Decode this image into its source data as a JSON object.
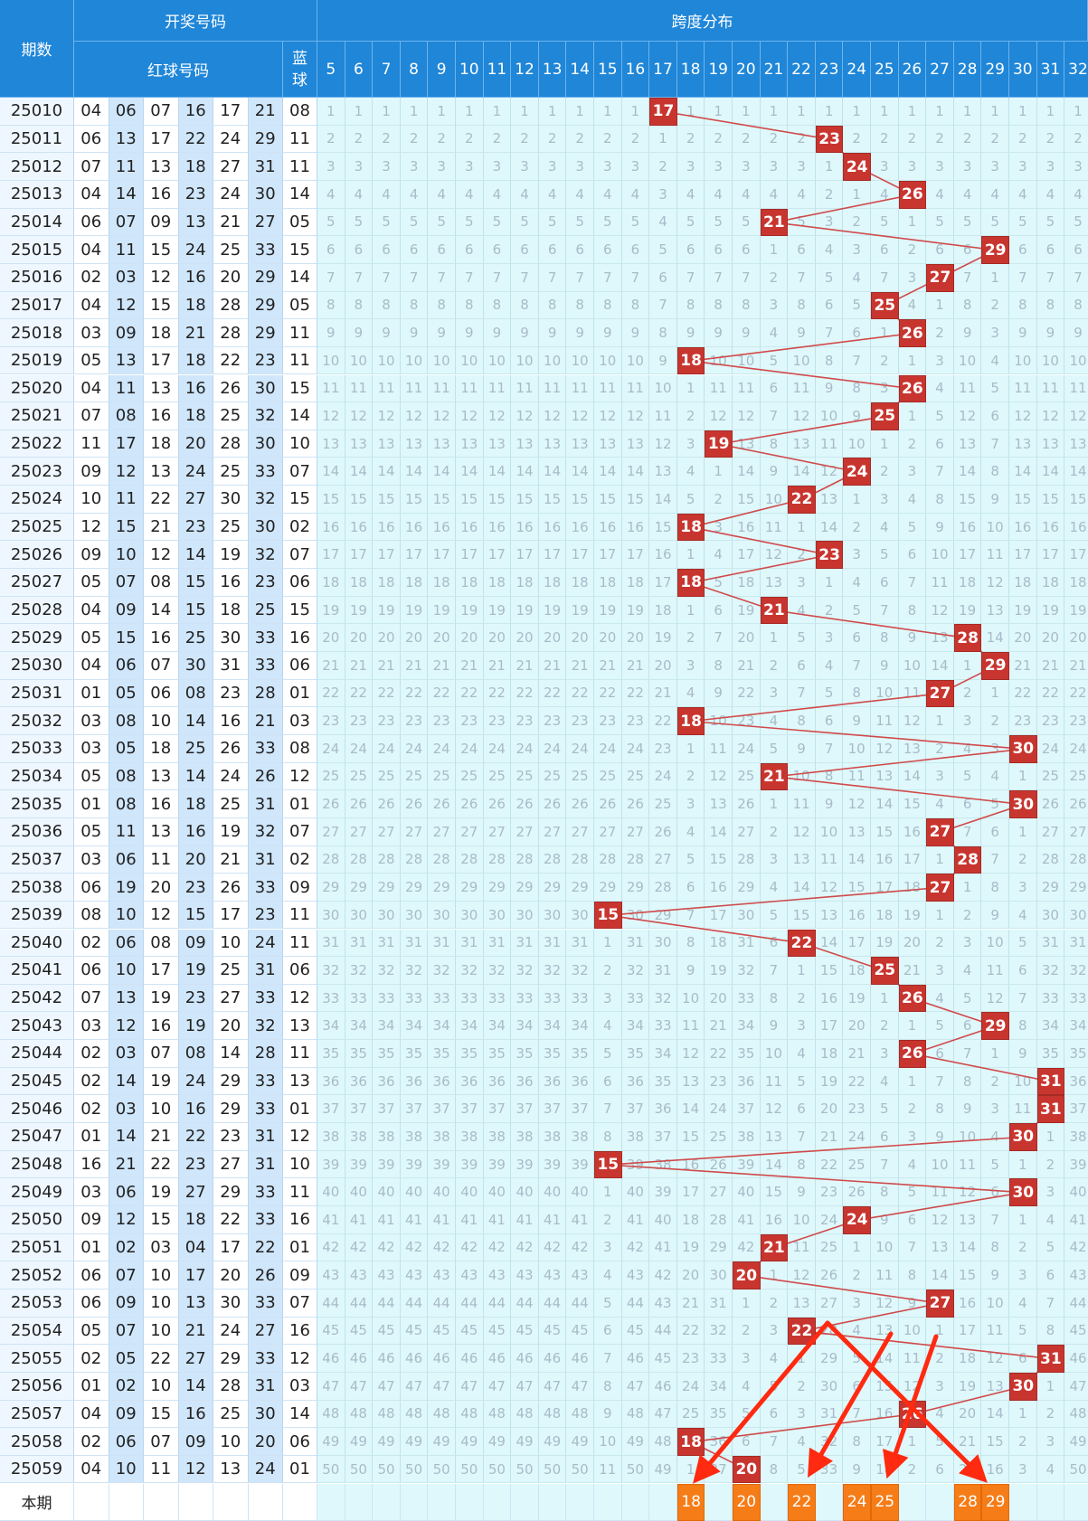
{
  "header": {
    "period_label": "期数",
    "draw_group_label": "开奖号码",
    "red_label": "红球号码",
    "blue_label": "蓝球",
    "span_group_label": "跨度分布"
  },
  "span_columns": [
    "5",
    "6",
    "7",
    "8",
    "9",
    "10",
    "11",
    "12",
    "13",
    "14",
    "15",
    "16",
    "17",
    "18",
    "19",
    "20",
    "21",
    "22",
    "23",
    "24",
    "25",
    "26",
    "27",
    "28",
    "29",
    "30",
    "31",
    "32"
  ],
  "rows": [
    {
      "period": "25010",
      "red": [
        "04",
        "06",
        "07",
        "16",
        "17",
        "21"
      ],
      "blue": "08",
      "span": 17
    },
    {
      "period": "25011",
      "red": [
        "06",
        "13",
        "17",
        "22",
        "24",
        "29"
      ],
      "blue": "11",
      "span": 23
    },
    {
      "period": "25012",
      "red": [
        "07",
        "11",
        "13",
        "18",
        "27",
        "31"
      ],
      "blue": "11",
      "span": 24
    },
    {
      "period": "25013",
      "red": [
        "04",
        "14",
        "16",
        "23",
        "24",
        "30"
      ],
      "blue": "14",
      "span": 26
    },
    {
      "period": "25014",
      "red": [
        "06",
        "07",
        "09",
        "13",
        "21",
        "27"
      ],
      "blue": "05",
      "span": 21
    },
    {
      "period": "25015",
      "red": [
        "04",
        "11",
        "15",
        "24",
        "25",
        "33"
      ],
      "blue": "15",
      "span": 29
    },
    {
      "period": "25016",
      "red": [
        "02",
        "03",
        "12",
        "16",
        "20",
        "29"
      ],
      "blue": "14",
      "span": 27
    },
    {
      "period": "25017",
      "red": [
        "04",
        "12",
        "15",
        "18",
        "28",
        "29"
      ],
      "blue": "05",
      "span": 25
    },
    {
      "period": "25018",
      "red": [
        "03",
        "09",
        "18",
        "21",
        "28",
        "29"
      ],
      "blue": "11",
      "span": 26
    },
    {
      "period": "25019",
      "red": [
        "05",
        "13",
        "17",
        "18",
        "22",
        "23"
      ],
      "blue": "11",
      "span": 18
    },
    {
      "period": "25020",
      "red": [
        "04",
        "11",
        "13",
        "16",
        "26",
        "30"
      ],
      "blue": "15",
      "span": 26
    },
    {
      "period": "25021",
      "red": [
        "07",
        "08",
        "16",
        "18",
        "25",
        "32"
      ],
      "blue": "14",
      "span": 25
    },
    {
      "period": "25022",
      "red": [
        "11",
        "17",
        "18",
        "20",
        "28",
        "30"
      ],
      "blue": "10",
      "span": 19
    },
    {
      "period": "25023",
      "red": [
        "09",
        "12",
        "13",
        "24",
        "25",
        "33"
      ],
      "blue": "07",
      "span": 24
    },
    {
      "period": "25024",
      "red": [
        "10",
        "11",
        "22",
        "27",
        "30",
        "32"
      ],
      "blue": "15",
      "span": 22
    },
    {
      "period": "25025",
      "red": [
        "12",
        "15",
        "21",
        "23",
        "25",
        "30"
      ],
      "blue": "02",
      "span": 18
    },
    {
      "period": "25026",
      "red": [
        "09",
        "10",
        "12",
        "14",
        "19",
        "32"
      ],
      "blue": "07",
      "span": 23
    },
    {
      "period": "25027",
      "red": [
        "05",
        "07",
        "08",
        "15",
        "16",
        "23"
      ],
      "blue": "06",
      "span": 18
    },
    {
      "period": "25028",
      "red": [
        "04",
        "09",
        "14",
        "15",
        "18",
        "25"
      ],
      "blue": "15",
      "span": 21
    },
    {
      "period": "25029",
      "red": [
        "05",
        "15",
        "16",
        "25",
        "30",
        "33"
      ],
      "blue": "16",
      "span": 28
    },
    {
      "period": "25030",
      "red": [
        "04",
        "06",
        "07",
        "30",
        "31",
        "33"
      ],
      "blue": "06",
      "span": 29
    },
    {
      "period": "25031",
      "red": [
        "01",
        "05",
        "06",
        "08",
        "23",
        "28"
      ],
      "blue": "01",
      "span": 27
    },
    {
      "period": "25032",
      "red": [
        "03",
        "08",
        "10",
        "14",
        "16",
        "21"
      ],
      "blue": "03",
      "span": 18
    },
    {
      "period": "25033",
      "red": [
        "03",
        "05",
        "18",
        "25",
        "26",
        "33"
      ],
      "blue": "08",
      "span": 30
    },
    {
      "period": "25034",
      "red": [
        "05",
        "08",
        "13",
        "14",
        "24",
        "26"
      ],
      "blue": "12",
      "span": 21
    },
    {
      "period": "25035",
      "red": [
        "01",
        "08",
        "16",
        "18",
        "25",
        "31"
      ],
      "blue": "01",
      "span": 30
    },
    {
      "period": "25036",
      "red": [
        "05",
        "11",
        "13",
        "16",
        "19",
        "32"
      ],
      "blue": "07",
      "span": 27
    },
    {
      "period": "25037",
      "red": [
        "03",
        "06",
        "11",
        "20",
        "21",
        "31"
      ],
      "blue": "02",
      "span": 28
    },
    {
      "period": "25038",
      "red": [
        "06",
        "19",
        "20",
        "23",
        "26",
        "33"
      ],
      "blue": "09",
      "span": 27
    },
    {
      "period": "25039",
      "red": [
        "08",
        "10",
        "12",
        "15",
        "17",
        "23"
      ],
      "blue": "11",
      "span": 15
    },
    {
      "period": "25040",
      "red": [
        "02",
        "06",
        "08",
        "09",
        "10",
        "24"
      ],
      "blue": "11",
      "span": 22
    },
    {
      "period": "25041",
      "red": [
        "06",
        "10",
        "17",
        "19",
        "25",
        "31"
      ],
      "blue": "06",
      "span": 25
    },
    {
      "period": "25042",
      "red": [
        "07",
        "13",
        "19",
        "23",
        "27",
        "33"
      ],
      "blue": "12",
      "span": 26
    },
    {
      "period": "25043",
      "red": [
        "03",
        "12",
        "16",
        "19",
        "20",
        "32"
      ],
      "blue": "13",
      "span": 29
    },
    {
      "period": "25044",
      "red": [
        "02",
        "03",
        "07",
        "08",
        "14",
        "28"
      ],
      "blue": "11",
      "span": 26
    },
    {
      "period": "25045",
      "red": [
        "02",
        "14",
        "19",
        "24",
        "29",
        "33"
      ],
      "blue": "13",
      "span": 31
    },
    {
      "period": "25046",
      "red": [
        "02",
        "03",
        "10",
        "16",
        "29",
        "33"
      ],
      "blue": "01",
      "span": 31
    },
    {
      "period": "25047",
      "red": [
        "01",
        "14",
        "21",
        "22",
        "23",
        "31"
      ],
      "blue": "12",
      "span": 30
    },
    {
      "period": "25048",
      "red": [
        "16",
        "21",
        "22",
        "23",
        "27",
        "31"
      ],
      "blue": "10",
      "span": 15
    },
    {
      "period": "25049",
      "red": [
        "03",
        "06",
        "19",
        "27",
        "29",
        "33"
      ],
      "blue": "11",
      "span": 30
    },
    {
      "period": "25050",
      "red": [
        "09",
        "12",
        "15",
        "18",
        "22",
        "33"
      ],
      "blue": "16",
      "span": 24
    },
    {
      "period": "25051",
      "red": [
        "01",
        "02",
        "03",
        "04",
        "17",
        "22"
      ],
      "blue": "01",
      "span": 21
    },
    {
      "period": "25052",
      "red": [
        "06",
        "07",
        "10",
        "17",
        "20",
        "26"
      ],
      "blue": "09",
      "span": 20
    },
    {
      "period": "25053",
      "red": [
        "06",
        "09",
        "10",
        "13",
        "30",
        "33"
      ],
      "blue": "07",
      "span": 27
    },
    {
      "period": "25054",
      "red": [
        "05",
        "07",
        "10",
        "21",
        "24",
        "27"
      ],
      "blue": "16",
      "span": 22
    },
    {
      "period": "25055",
      "red": [
        "02",
        "05",
        "22",
        "27",
        "29",
        "33"
      ],
      "blue": "12",
      "span": 31
    },
    {
      "period": "25056",
      "red": [
        "01",
        "02",
        "10",
        "14",
        "28",
        "31"
      ],
      "blue": "03",
      "span": 30
    },
    {
      "period": "25057",
      "red": [
        "04",
        "09",
        "15",
        "16",
        "25",
        "30"
      ],
      "blue": "14",
      "span": 26
    },
    {
      "period": "25058",
      "red": [
        "02",
        "06",
        "07",
        "09",
        "10",
        "20"
      ],
      "blue": "06",
      "span": 18
    },
    {
      "period": "25059",
      "red": [
        "04",
        "10",
        "11",
        "12",
        "13",
        "24"
      ],
      "blue": "01",
      "span": 20
    }
  ],
  "footer": {
    "label": "本期",
    "highlighted": [
      "18",
      "20",
      "22",
      "24",
      "25",
      "28",
      "29"
    ]
  },
  "colors": {
    "header_blue": "#1f86d8",
    "hit_red": "#c8352f",
    "footer_orange": "#f57c17",
    "arrow_red": "#ff2a10",
    "trend_line": "#d04a4a"
  }
}
